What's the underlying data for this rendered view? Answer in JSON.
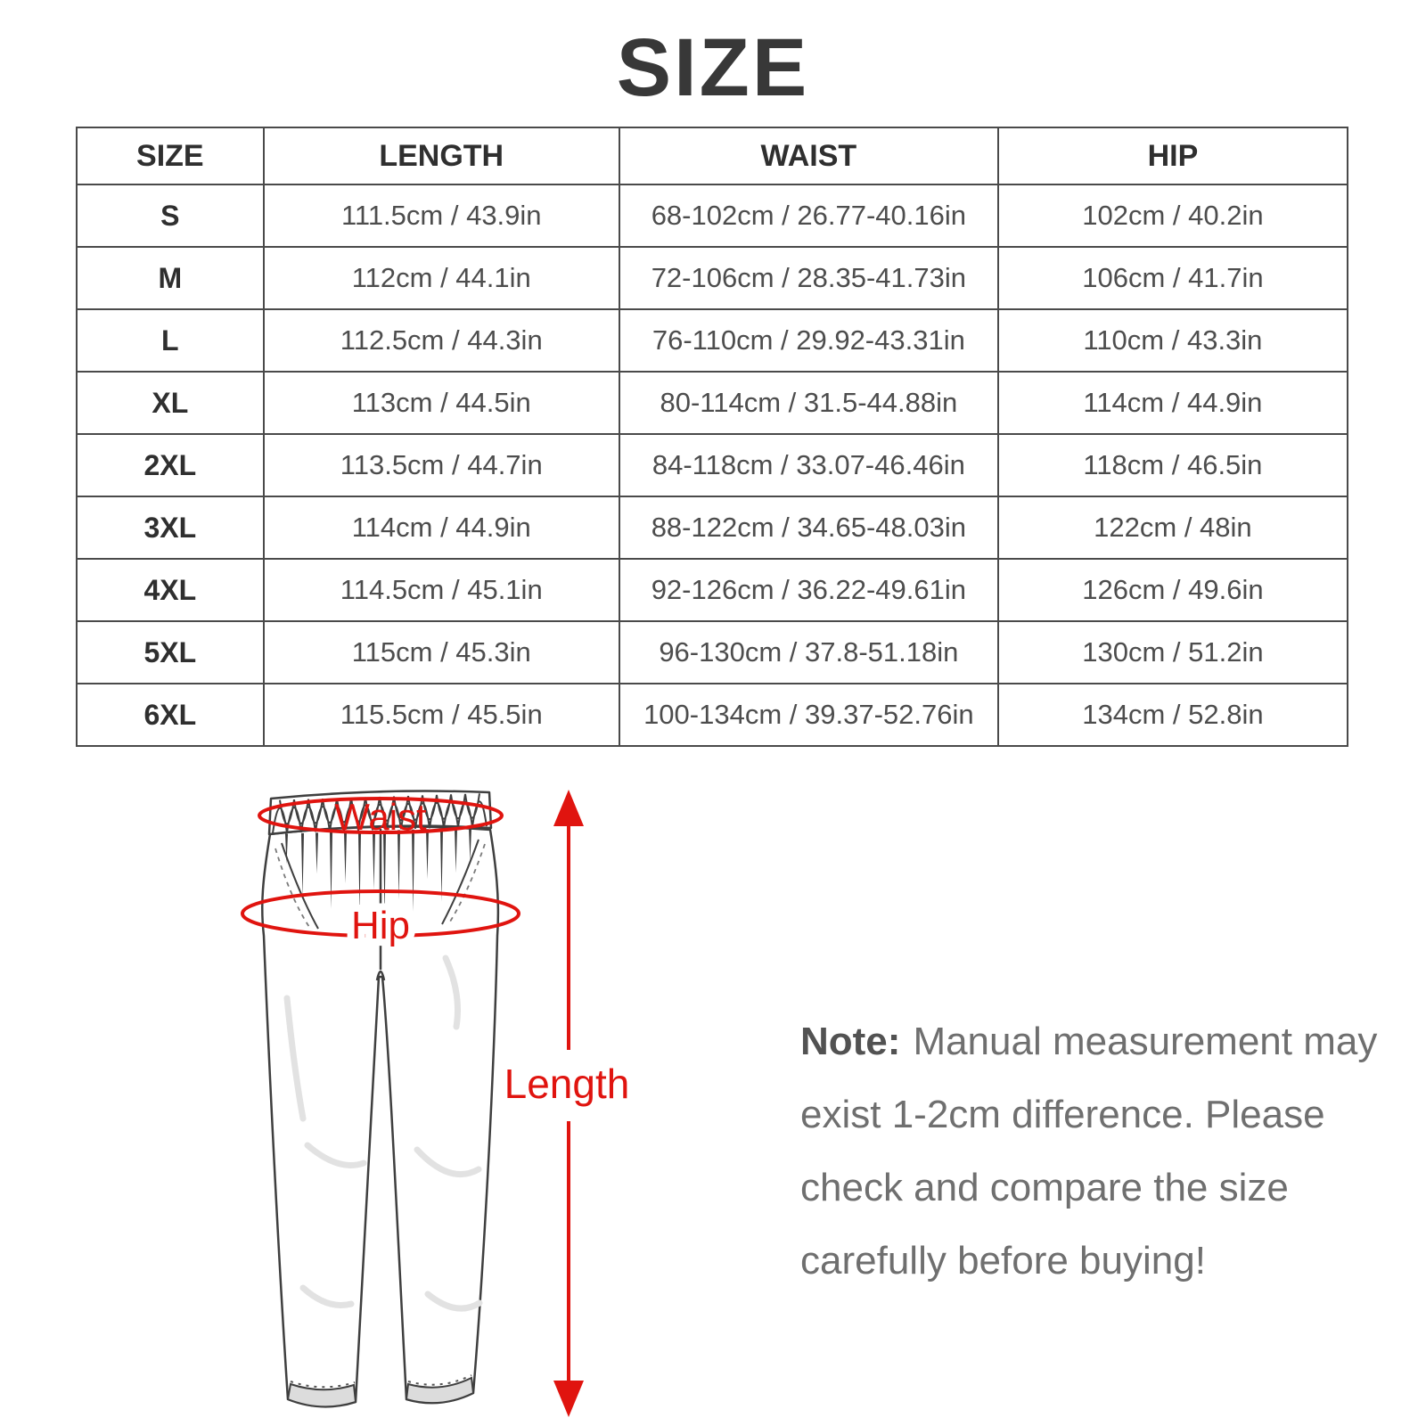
{
  "title": "SIZE",
  "table": {
    "columns": [
      "SIZE",
      "LENGTH",
      "WAIST",
      "HIP"
    ],
    "rows": [
      {
        "size": "S",
        "length": "111.5cm / 43.9in",
        "waist": "68-102cm / 26.77-40.16in",
        "hip": "102cm / 40.2in"
      },
      {
        "size": "M",
        "length": "112cm / 44.1in",
        "waist": "72-106cm / 28.35-41.73in",
        "hip": "106cm / 41.7in"
      },
      {
        "size": "L",
        "length": "112.5cm / 44.3in",
        "waist": "76-110cm / 29.92-43.31in",
        "hip": "110cm / 43.3in"
      },
      {
        "size": "XL",
        "length": "113cm / 44.5in",
        "waist": "80-114cm / 31.5-44.88in",
        "hip": "114cm / 44.9in"
      },
      {
        "size": "2XL",
        "length": "113.5cm / 44.7in",
        "waist": "84-118cm / 33.07-46.46in",
        "hip": "118cm / 46.5in"
      },
      {
        "size": "3XL",
        "length": "114cm / 44.9in",
        "waist": "88-122cm / 34.65-48.03in",
        "hip": "122cm / 48in"
      },
      {
        "size": "4XL",
        "length": "114.5cm / 45.1in",
        "waist": "92-126cm / 36.22-49.61in",
        "hip": "126cm / 49.6in"
      },
      {
        "size": "5XL",
        "length": "115cm / 45.3in",
        "waist": "96-130cm / 37.8-51.18in",
        "hip": "130cm / 51.2in"
      },
      {
        "size": "6XL",
        "length": "115.5cm / 45.5in",
        "waist": "100-134cm / 39.37-52.76in",
        "hip": "134cm / 52.8in"
      }
    ]
  },
  "diagram": {
    "waist_label": "Waist",
    "hip_label": "Hip",
    "length_label": "Length"
  },
  "note": {
    "label": "Note:",
    "lines": [
      "Manual measurement may",
      "exist 1-2cm difference. Please",
      "check and compare the size",
      "carefully before buying!"
    ]
  },
  "colors": {
    "accent_red": "#e0140f",
    "table_border": "#4a4a4a",
    "title_text": "#383838",
    "cell_text": "#4d4d4d",
    "note_text": "#6f6f6f"
  }
}
